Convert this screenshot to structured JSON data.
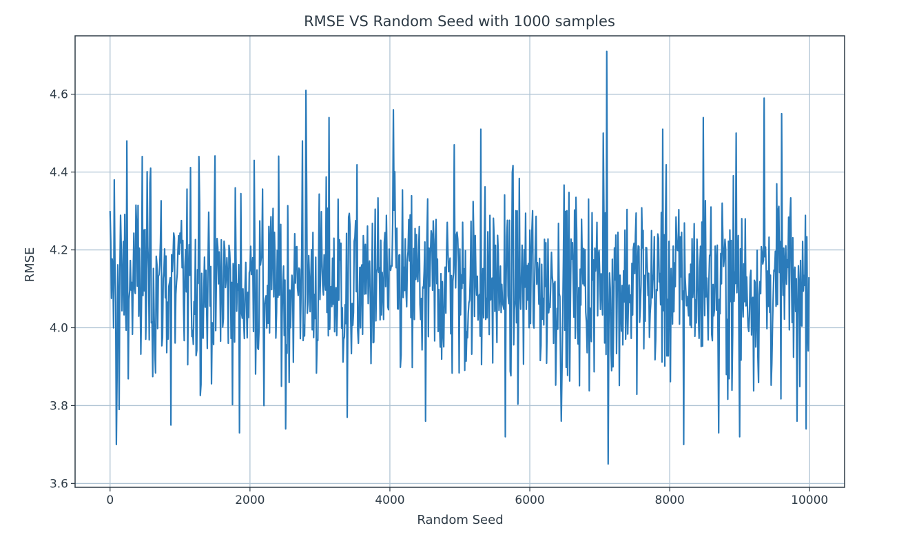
{
  "chart_data": {
    "type": "line",
    "title": "RMSE VS Random Seed with 1000 samples",
    "xlabel": "Random Seed",
    "ylabel": "RMSE",
    "xlim": [
      -500,
      10500
    ],
    "ylim": [
      3.59,
      4.75
    ],
    "xticks": [
      0,
      2000,
      4000,
      6000,
      8000,
      10000
    ],
    "xtick_labels": [
      "0",
      "2000",
      "4000",
      "6000",
      "8000",
      "10000"
    ],
    "yticks": [
      3.6,
      3.8,
      4.0,
      4.2,
      4.4,
      4.6
    ],
    "ytick_labels": [
      "3.6",
      "3.8",
      "4.0",
      "4.2",
      "4.4",
      "4.6"
    ],
    "grid": true,
    "series": [
      {
        "color": "#2b7bba",
        "n_points": 1000,
        "x_start": 0,
        "x_step": 10,
        "mean": 4.11,
        "min": 3.65,
        "max": 4.71,
        "notable_points": [
          {
            "x": 0,
            "y": 4.3
          },
          {
            "x": 60,
            "y": 4.38
          },
          {
            "x": 90,
            "y": 3.7
          },
          {
            "x": 130,
            "y": 3.79
          },
          {
            "x": 240,
            "y": 4.48
          },
          {
            "x": 460,
            "y": 4.44
          },
          {
            "x": 580,
            "y": 4.41
          },
          {
            "x": 870,
            "y": 3.75
          },
          {
            "x": 1270,
            "y": 4.44
          },
          {
            "x": 1850,
            "y": 3.73
          },
          {
            "x": 2060,
            "y": 4.43
          },
          {
            "x": 2200,
            "y": 3.8
          },
          {
            "x": 2510,
            "y": 3.74
          },
          {
            "x": 2750,
            "y": 4.48
          },
          {
            "x": 2800,
            "y": 4.61
          },
          {
            "x": 3130,
            "y": 4.54
          },
          {
            "x": 3390,
            "y": 3.77
          },
          {
            "x": 4050,
            "y": 4.56
          },
          {
            "x": 4510,
            "y": 3.76
          },
          {
            "x": 4920,
            "y": 4.47
          },
          {
            "x": 5300,
            "y": 4.51
          },
          {
            "x": 5650,
            "y": 3.72
          },
          {
            "x": 6450,
            "y": 3.76
          },
          {
            "x": 7050,
            "y": 4.5
          },
          {
            "x": 7100,
            "y": 4.71
          },
          {
            "x": 7120,
            "y": 3.65
          },
          {
            "x": 7900,
            "y": 4.51
          },
          {
            "x": 8200,
            "y": 3.7
          },
          {
            "x": 8480,
            "y": 4.54
          },
          {
            "x": 8700,
            "y": 3.73
          },
          {
            "x": 8950,
            "y": 4.5
          },
          {
            "x": 9000,
            "y": 3.72
          },
          {
            "x": 9350,
            "y": 4.59
          },
          {
            "x": 9600,
            "y": 4.55
          },
          {
            "x": 9820,
            "y": 3.76
          },
          {
            "x": 9990,
            "y": 4.13
          }
        ]
      }
    ]
  }
}
